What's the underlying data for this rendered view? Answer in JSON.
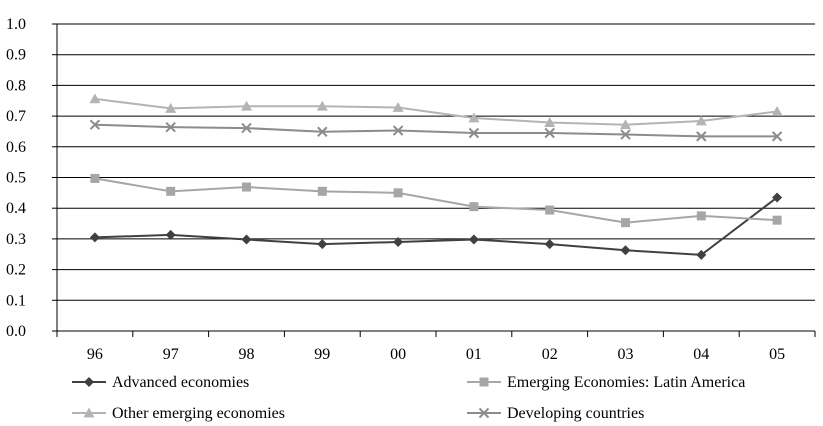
{
  "chart_data": {
    "type": "line",
    "categories": [
      "96",
      "97",
      "98",
      "99",
      "00",
      "01",
      "02",
      "03",
      "04",
      "05"
    ],
    "ylim": [
      0,
      1
    ],
    "yticks": [
      "0.0",
      "0.1",
      "0.2",
      "0.3",
      "0.4",
      "0.5",
      "0.6",
      "0.7",
      "0.8",
      "0.9",
      "1.0"
    ],
    "grid": true,
    "legend_position": "bottom",
    "series": [
      {
        "name": "Advanced economies",
        "marker": "diamond",
        "color": "#404040",
        "values": [
          0.305,
          0.313,
          0.298,
          0.283,
          0.29,
          0.298,
          0.283,
          0.263,
          0.248,
          0.435
        ]
      },
      {
        "name": "Emerging Economies: Latin America",
        "marker": "square",
        "color": "#a6a6a6",
        "values": [
          0.497,
          0.455,
          0.469,
          0.455,
          0.45,
          0.405,
          0.394,
          0.353,
          0.375,
          0.361
        ]
      },
      {
        "name": "Other emerging economies",
        "marker": "triangle",
        "color": "#b4b4b4",
        "values": [
          0.756,
          0.725,
          0.732,
          0.732,
          0.728,
          0.694,
          0.679,
          0.672,
          0.684,
          0.715
        ]
      },
      {
        "name": "Developing countries",
        "marker": "cross",
        "color": "#8c8c8c",
        "values": [
          0.672,
          0.664,
          0.661,
          0.649,
          0.653,
          0.645,
          0.645,
          0.64,
          0.634,
          0.634
        ]
      }
    ]
  }
}
